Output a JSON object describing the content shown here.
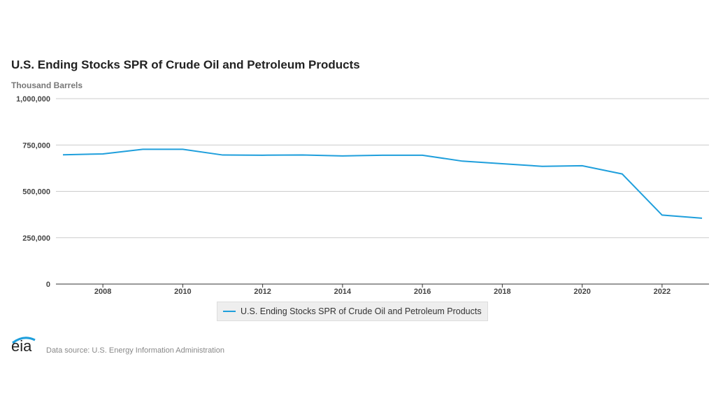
{
  "chart_data": {
    "type": "line",
    "title": "U.S. Ending Stocks SPR of Crude Oil and Petroleum Products",
    "ylabel": "Thousand Barrels",
    "x": [
      2007,
      2008,
      2009,
      2010,
      2011,
      2012,
      2013,
      2014,
      2015,
      2016,
      2017,
      2018,
      2019,
      2020,
      2021,
      2022,
      2023
    ],
    "series": [
      {
        "name": "U.S. Ending Stocks SPR of Crude Oil and Petroleum Products",
        "values": [
          697000,
          702000,
          727000,
          727000,
          696000,
          695000,
          696000,
          691000,
          695000,
          695000,
          663000,
          649000,
          635000,
          638000,
          594000,
          372000,
          355000
        ],
        "color": "#1f9fdc"
      }
    ],
    "xticks": [
      "2008",
      "2010",
      "2012",
      "2014",
      "2016",
      "2018",
      "2020",
      "2022"
    ],
    "yticks": [
      "0",
      "250,000",
      "500,000",
      "750,000",
      "1,000,000"
    ],
    "ylim": [
      0,
      1000000
    ],
    "xlim": [
      2007,
      2023
    ],
    "grid": true,
    "legend": "bottom-center"
  },
  "footer": {
    "logo": "eia",
    "source": "Data source: U.S. Energy Information Administration"
  }
}
